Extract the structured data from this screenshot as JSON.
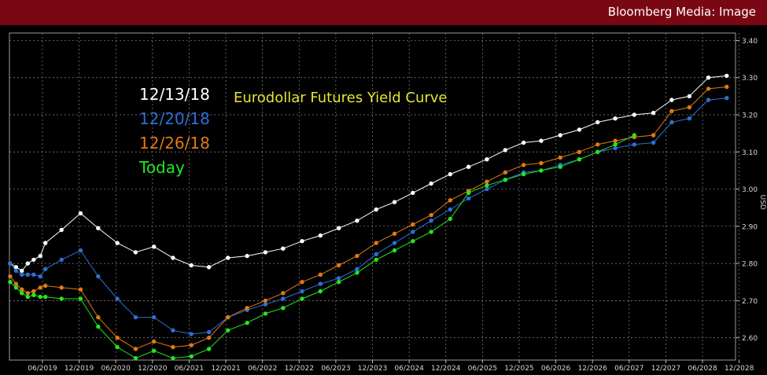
{
  "header": {
    "brand": "Bloomberg Media: Image"
  },
  "colors": {
    "header_bg": "#7a0714",
    "white": "#ffffff",
    "blue": "#2d6fd6",
    "orange": "#e07a12",
    "green": "#22e622",
    "title_yellow": "#e6e633"
  },
  "chart_data": {
    "type": "line",
    "title": "Eurodollar Futures Yield Curve",
    "ylabel": "USD",
    "ylim": [
      2.54,
      3.42
    ],
    "xlim": [
      2019.0,
      2028.9
    ],
    "y_ticks": [
      "2.60",
      "2.70",
      "2.80",
      "2.90",
      "3.00",
      "3.10",
      "3.20",
      "3.30",
      "3.40"
    ],
    "x_ticks": [
      {
        "x": 2019.45,
        "label": "06/2019"
      },
      {
        "x": 2019.95,
        "label": "12/2019"
      },
      {
        "x": 2020.45,
        "label": "06/2020"
      },
      {
        "x": 2020.95,
        "label": "12/2020"
      },
      {
        "x": 2021.45,
        "label": "06/2021"
      },
      {
        "x": 2021.95,
        "label": "12/2021"
      },
      {
        "x": 2022.45,
        "label": "06/2022"
      },
      {
        "x": 2022.95,
        "label": "12/2022"
      },
      {
        "x": 2023.45,
        "label": "06/2023"
      },
      {
        "x": 2023.95,
        "label": "12/2023"
      },
      {
        "x": 2024.45,
        "label": "06/2024"
      },
      {
        "x": 2024.95,
        "label": "12/2024"
      },
      {
        "x": 2025.45,
        "label": "06/2025"
      },
      {
        "x": 2025.95,
        "label": "12/2025"
      },
      {
        "x": 2026.45,
        "label": "06/2026"
      },
      {
        "x": 2026.95,
        "label": "12/2026"
      },
      {
        "x": 2027.45,
        "label": "06/2027"
      },
      {
        "x": 2027.95,
        "label": "12/2027"
      },
      {
        "x": 2028.45,
        "label": "06/2028"
      },
      {
        "x": 2028.95,
        "label": "12/2028"
      }
    ],
    "grid": true,
    "legend_position": "top-left",
    "series": [
      {
        "name": "12/13/18",
        "color": "#ffffff",
        "x": [
          2019.01,
          2019.09,
          2019.17,
          2019.25,
          2019.33,
          2019.42,
          2019.49,
          2019.71,
          2019.97,
          2020.21,
          2020.47,
          2020.72,
          2020.97,
          2021.23,
          2021.48,
          2021.72,
          2021.98,
          2022.24,
          2022.49,
          2022.73,
          2022.99,
          2023.24,
          2023.49,
          2023.74,
          2024.0,
          2024.25,
          2024.5,
          2024.75,
          2025.01,
          2025.26,
          2025.51,
          2025.76,
          2026.01,
          2026.25,
          2026.51,
          2026.77,
          2027.02,
          2027.26,
          2027.52,
          2027.78,
          2028.03,
          2028.27,
          2028.53,
          2028.78
        ],
        "y": [
          2.8,
          2.79,
          2.78,
          2.8,
          2.81,
          2.82,
          2.855,
          2.89,
          2.935,
          2.895,
          2.855,
          2.83,
          2.845,
          2.815,
          2.795,
          2.79,
          2.815,
          2.82,
          2.83,
          2.84,
          2.86,
          2.875,
          2.895,
          2.915,
          2.945,
          2.965,
          2.99,
          3.015,
          3.04,
          3.06,
          3.08,
          3.105,
          3.125,
          3.13,
          3.145,
          3.16,
          3.18,
          3.19,
          3.2,
          3.205,
          3.24,
          3.25,
          3.3,
          3.305
        ]
      },
      {
        "name": "12/20/18",
        "color": "#2d6fd6",
        "x": [
          2019.01,
          2019.09,
          2019.17,
          2019.25,
          2019.33,
          2019.42,
          2019.49,
          2019.71,
          2019.97,
          2020.21,
          2020.47,
          2020.72,
          2020.97,
          2021.23,
          2021.48,
          2021.72,
          2021.98,
          2022.24,
          2022.49,
          2022.73,
          2022.99,
          2023.24,
          2023.49,
          2023.74,
          2024.0,
          2024.25,
          2024.5,
          2024.75,
          2025.01,
          2025.26,
          2025.51,
          2025.76,
          2026.01,
          2026.25,
          2026.51,
          2026.77,
          2027.02,
          2027.26,
          2027.52,
          2027.78,
          2028.03,
          2028.27,
          2028.53,
          2028.78
        ],
        "y": [
          2.8,
          2.78,
          2.77,
          2.77,
          2.77,
          2.765,
          2.785,
          2.81,
          2.835,
          2.765,
          2.705,
          2.655,
          2.655,
          2.62,
          2.61,
          2.615,
          2.655,
          2.675,
          2.69,
          2.705,
          2.725,
          2.745,
          2.76,
          2.785,
          2.825,
          2.855,
          2.885,
          2.915,
          2.945,
          2.975,
          3.0,
          3.025,
          3.045,
          3.05,
          3.065,
          3.08,
          3.1,
          3.11,
          3.12,
          3.125,
          3.18,
          3.19,
          3.24,
          3.245
        ]
      },
      {
        "name": "12/26/18",
        "color": "#e07a12",
        "x": [
          2019.01,
          2019.09,
          2019.17,
          2019.25,
          2019.33,
          2019.42,
          2019.49,
          2019.71,
          2019.97,
          2020.21,
          2020.47,
          2020.72,
          2020.97,
          2021.23,
          2021.48,
          2021.72,
          2021.98,
          2022.24,
          2022.49,
          2022.73,
          2022.99,
          2023.24,
          2023.49,
          2023.74,
          2024.0,
          2024.25,
          2024.5,
          2024.75,
          2025.01,
          2025.26,
          2025.51,
          2025.76,
          2026.01,
          2026.25,
          2026.51,
          2026.77,
          2027.02,
          2027.26,
          2027.52,
          2027.78,
          2028.03,
          2028.27,
          2028.53,
          2028.78
        ],
        "y": [
          2.765,
          2.745,
          2.73,
          2.72,
          2.725,
          2.735,
          2.74,
          2.735,
          2.73,
          2.655,
          2.6,
          2.57,
          2.59,
          2.575,
          2.58,
          2.6,
          2.655,
          2.68,
          2.7,
          2.72,
          2.75,
          2.77,
          2.795,
          2.82,
          2.855,
          2.88,
          2.905,
          2.93,
          2.97,
          2.995,
          3.02,
          3.045,
          3.065,
          3.07,
          3.085,
          3.1,
          3.12,
          3.13,
          3.14,
          3.145,
          3.21,
          3.22,
          3.27,
          3.275
        ]
      },
      {
        "name": "Today",
        "color": "#22e622",
        "x": [
          2019.01,
          2019.09,
          2019.17,
          2019.25,
          2019.33,
          2019.42,
          2019.49,
          2019.71,
          2019.97,
          2020.21,
          2020.47,
          2020.72,
          2020.97,
          2021.23,
          2021.48,
          2021.72,
          2021.98,
          2022.24,
          2022.49,
          2022.73,
          2022.99,
          2023.24,
          2023.49,
          2023.74,
          2024.0,
          2024.25,
          2024.5,
          2024.75,
          2025.01,
          2025.26,
          2025.51,
          2025.76,
          2026.01,
          2026.25,
          2026.51,
          2026.77,
          2027.02,
          2027.26,
          2027.52
        ],
        "y": [
          2.75,
          2.735,
          2.72,
          2.71,
          2.715,
          2.71,
          2.71,
          2.705,
          2.705,
          2.63,
          2.575,
          2.545,
          2.565,
          2.545,
          2.55,
          2.57,
          2.62,
          2.64,
          2.665,
          2.68,
          2.705,
          2.725,
          2.75,
          2.775,
          2.81,
          2.835,
          2.86,
          2.885,
          2.92,
          2.99,
          3.01,
          3.025,
          3.04,
          3.05,
          3.06,
          3.08,
          3.1,
          3.12,
          3.145
        ]
      }
    ]
  }
}
